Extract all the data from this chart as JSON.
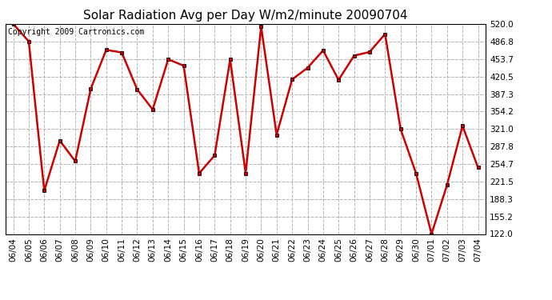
{
  "title": "Solar Radiation Avg per Day W/m2/minute 20090704",
  "copyright": "Copyright 2009 Cartronics.com",
  "dates": [
    "06/04",
    "06/05",
    "06/06",
    "06/07",
    "06/08",
    "06/09",
    "06/10",
    "06/11",
    "06/12",
    "06/13",
    "06/14",
    "06/15",
    "06/16",
    "06/17",
    "06/18",
    "06/19",
    "06/20",
    "06/21",
    "06/22",
    "06/23",
    "06/24",
    "06/25",
    "06/26",
    "06/27",
    "06/28",
    "06/29",
    "06/30",
    "07/01",
    "07/02",
    "07/03",
    "07/04"
  ],
  "values": [
    520.0,
    487.0,
    204.0,
    299.0,
    260.0,
    397.0,
    471.0,
    466.0,
    396.0,
    358.0,
    453.0,
    441.0,
    237.0,
    271.0,
    453.0,
    237.0,
    515.0,
    310.0,
    415.0,
    437.0,
    470.0,
    414.0,
    460.0,
    467.0,
    501.0,
    321.0,
    237.0,
    122.0,
    215.0,
    327.0,
    248.0
  ],
  "ylim": [
    122.0,
    520.0
  ],
  "yticks": [
    122.0,
    155.2,
    188.3,
    221.5,
    254.7,
    287.8,
    321.0,
    354.2,
    387.3,
    420.5,
    453.7,
    486.8,
    520.0
  ],
  "line_color": "#cc0000",
  "marker_color": "#000000",
  "bg_color": "#ffffff",
  "grid_color": "#aaaaaa",
  "title_fontsize": 11,
  "copyright_fontsize": 7,
  "tick_fontsize": 7.5
}
